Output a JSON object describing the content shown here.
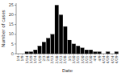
{
  "chart_data": {
    "type": "bar",
    "xlabel": "Date",
    "ylabel": "Number of cases",
    "categories": [
      "1/4",
      "1/9",
      "1/14",
      "1/19",
      "1/24",
      "1/29",
      "2/3",
      "2/8",
      "2/13",
      "2/18",
      "2/23",
      "2/28",
      "3/5",
      "3/10",
      "3/15",
      "3/20",
      "3/25",
      "3/30",
      "4/4",
      "4/9",
      "4/14",
      "4/19",
      "4/24",
      "4/29"
    ],
    "values": [
      0,
      0,
      1,
      1,
      2,
      4,
      6,
      8,
      10,
      25,
      20,
      14,
      7,
      5,
      4,
      3,
      2,
      2,
      1,
      1,
      0,
      1,
      0,
      1
    ],
    "color": "#000000",
    "ylim": [
      0,
      26
    ],
    "yticks": [
      0,
      5,
      10,
      15,
      20,
      25
    ]
  }
}
